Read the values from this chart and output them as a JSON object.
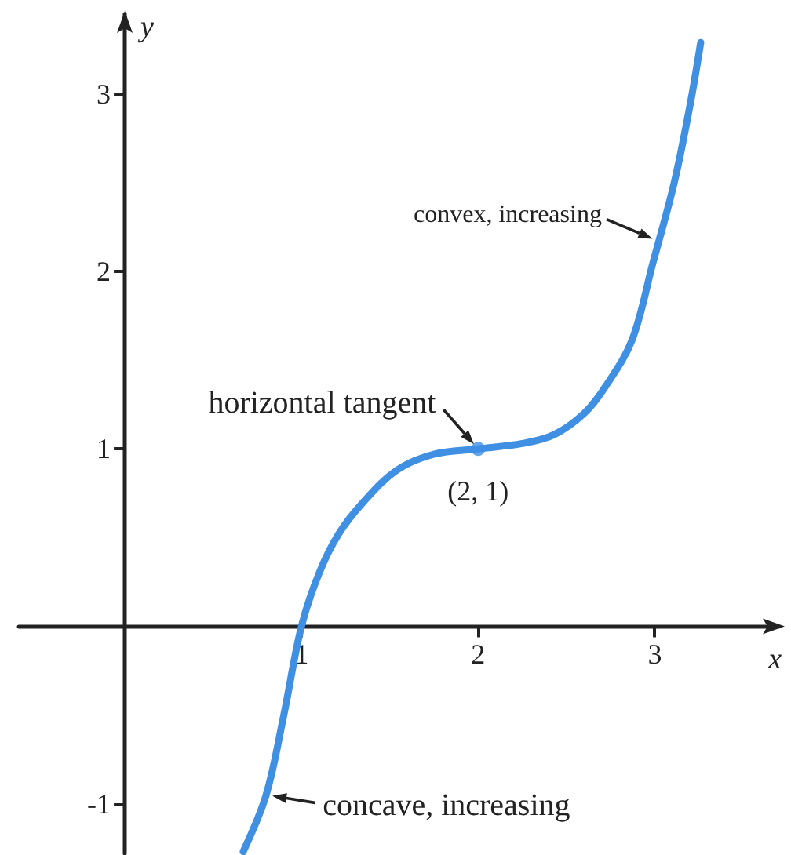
{
  "chart_data": {
    "type": "line",
    "xlabel": "x",
    "ylabel": "y",
    "series": [
      {
        "color": "#3f8fe3",
        "marker": "none",
        "x": [
          0.67,
          0.8,
          0.9,
          1.0,
          1.1,
          1.21,
          1.35,
          1.54,
          1.75,
          2.0,
          2.25,
          2.43,
          2.6,
          2.72,
          2.87,
          2.99,
          3.11,
          3.2,
          3.26
        ],
        "values": [
          -1.27,
          -0.95,
          -0.5,
          0,
          0.3,
          0.52,
          0.7,
          0.88,
          0.97,
          1.0,
          1.03,
          1.08,
          1.2,
          1.35,
          1.61,
          2.05,
          2.5,
          2.94,
          3.29
        ]
      },
      {
        "type": "scatter",
        "color": "#3f8fe3",
        "marker": "circle",
        "x": [
          2
        ],
        "values": [
          1
        ]
      }
    ],
    "xlim": [
      -0.6,
      3.7
    ],
    "ylim": [
      -1.28,
      3.45
    ],
    "xticks": [
      1,
      2,
      3
    ],
    "yticks": [
      -1,
      1,
      2,
      3
    ],
    "grid": false,
    "annotations": [
      {
        "text": "convex, increasing",
        "x": 3.02,
        "y": 2.17
      },
      {
        "text": "horizontal tangent",
        "x": 2,
        "y": 1
      },
      {
        "text": "(2, 1)",
        "x": 2,
        "y": 1
      },
      {
        "text": "concave, increasing",
        "x": 0.8,
        "y": -0.95
      }
    ]
  }
}
